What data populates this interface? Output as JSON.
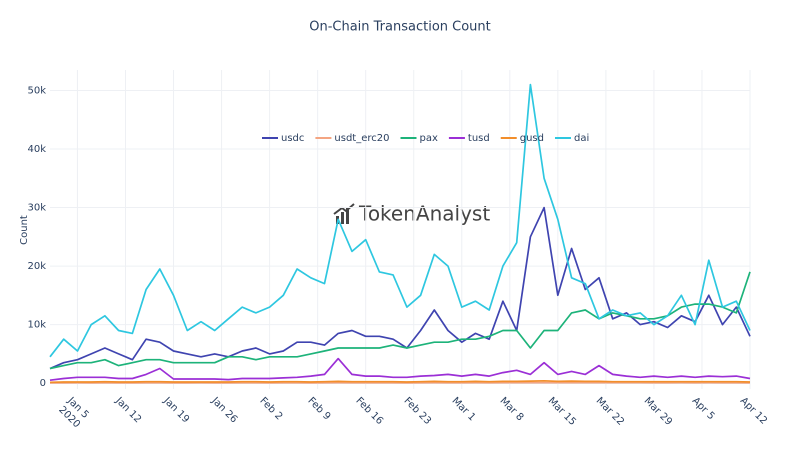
{
  "chart_data": {
    "type": "line",
    "title": "On-Chain Transaction Count",
    "ylabel": "Count",
    "watermark": "TokenAnalyst",
    "xtick_year": "2020",
    "x": [
      "2020-01-01",
      "2020-01-03",
      "2020-01-05",
      "2020-01-07",
      "2020-01-09",
      "2020-01-11",
      "2020-01-13",
      "2020-01-15",
      "2020-01-17",
      "2020-01-19",
      "2020-01-21",
      "2020-01-23",
      "2020-01-25",
      "2020-01-27",
      "2020-01-29",
      "2020-01-31",
      "2020-02-02",
      "2020-02-04",
      "2020-02-06",
      "2020-02-08",
      "2020-02-10",
      "2020-02-12",
      "2020-02-14",
      "2020-02-16",
      "2020-02-18",
      "2020-02-20",
      "2020-02-22",
      "2020-02-24",
      "2020-02-26",
      "2020-02-28",
      "2020-03-01",
      "2020-03-03",
      "2020-03-05",
      "2020-03-07",
      "2020-03-09",
      "2020-03-11",
      "2020-03-13",
      "2020-03-15",
      "2020-03-17",
      "2020-03-19",
      "2020-03-21",
      "2020-03-23",
      "2020-03-25",
      "2020-03-27",
      "2020-03-29",
      "2020-03-31",
      "2020-04-02",
      "2020-04-04",
      "2020-04-06",
      "2020-04-08",
      "2020-04-10",
      "2020-04-12"
    ],
    "series": [
      {
        "name": "usdc",
        "color": "#3f44b0",
        "values": [
          2500,
          3500,
          4000,
          5000,
          6000,
          5000,
          4000,
          7500,
          7000,
          5500,
          5000,
          4500,
          5000,
          4500,
          5500,
          6000,
          5000,
          5500,
          7000,
          7000,
          6500,
          8500,
          9000,
          8000,
          8000,
          7500,
          6000,
          9000,
          12500,
          9000,
          7000,
          8500,
          7500,
          14000,
          9000,
          25000,
          30000,
          15000,
          23000,
          16000,
          18000,
          11000,
          12000,
          10000,
          10500,
          9500,
          11500,
          10500,
          15000,
          10000,
          13000,
          8000
        ]
      },
      {
        "name": "usdt_erc20",
        "color": "#f4a582",
        "values": [
          50,
          50,
          60,
          50,
          60,
          50,
          50,
          60,
          60,
          50,
          50,
          60,
          50,
          50,
          60,
          60,
          50,
          60,
          60,
          50,
          60,
          70,
          60,
          60,
          60,
          60,
          50,
          60,
          70,
          60,
          60,
          70,
          60,
          80,
          70,
          90,
          100,
          80,
          90,
          80,
          80,
          70,
          70,
          70,
          60,
          60,
          70,
          60,
          70,
          60,
          60,
          50
        ]
      },
      {
        "name": "pax",
        "color": "#1db37a",
        "values": [
          2500,
          3000,
          3500,
          3500,
          4000,
          3000,
          3500,
          4000,
          4000,
          3500,
          3500,
          3500,
          3500,
          4500,
          4500,
          4000,
          4500,
          4500,
          4500,
          5000,
          5500,
          6000,
          6000,
          6000,
          6000,
          6500,
          6000,
          6500,
          7000,
          7000,
          7500,
          7500,
          8000,
          9000,
          9000,
          6000,
          9000,
          9000,
          12000,
          12500,
          11000,
          12000,
          11500,
          11000,
          11000,
          11500,
          13000,
          13500,
          13500,
          13000,
          12000,
          19000
        ]
      },
      {
        "name": "tusd",
        "color": "#9b2fd6",
        "values": [
          500,
          800,
          1000,
          1000,
          1000,
          800,
          800,
          1500,
          2500,
          700,
          700,
          700,
          700,
          600,
          800,
          800,
          800,
          900,
          1000,
          1200,
          1500,
          4200,
          1500,
          1200,
          1200,
          1000,
          1000,
          1200,
          1300,
          1500,
          1200,
          1500,
          1200,
          1800,
          2200,
          1500,
          3500,
          1500,
          2000,
          1500,
          3000,
          1500,
          1200,
          1000,
          1200,
          1000,
          1200,
          1000,
          1200,
          1100,
          1200,
          800
        ]
      },
      {
        "name": "gusd",
        "color": "#f28e2b",
        "values": [
          150,
          200,
          200,
          200,
          250,
          200,
          200,
          250,
          250,
          200,
          200,
          200,
          200,
          200,
          250,
          250,
          200,
          250,
          250,
          200,
          250,
          300,
          250,
          250,
          250,
          250,
          200,
          250,
          300,
          250,
          250,
          300,
          250,
          300,
          300,
          350,
          400,
          300,
          350,
          300,
          300,
          250,
          250,
          250,
          250,
          250,
          250,
          250,
          250,
          250,
          250,
          200
        ]
      },
      {
        "name": "dai",
        "color": "#2ec7e0",
        "values": [
          4500,
          7500,
          5500,
          10000,
          11500,
          9000,
          8500,
          16000,
          19500,
          15000,
          9000,
          10500,
          9000,
          11000,
          13000,
          12000,
          13000,
          15000,
          19500,
          18000,
          17000,
          28000,
          22500,
          24500,
          19000,
          18500,
          13000,
          15000,
          22000,
          20000,
          13000,
          14000,
          12500,
          20000,
          24000,
          51000,
          35000,
          28000,
          18000,
          17000,
          11000,
          12500,
          11500,
          12000,
          10000,
          11500,
          15000,
          10000,
          21000,
          13000,
          14000,
          9000
        ]
      }
    ],
    "xlim": [
      "2020-01-01",
      "2020-04-12"
    ],
    "xticks": [
      {
        "value": "2020-01-05",
        "label": "Jan 5"
      },
      {
        "value": "2020-01-12",
        "label": "Jan 12"
      },
      {
        "value": "2020-01-19",
        "label": "Jan 19"
      },
      {
        "value": "2020-01-26",
        "label": "Jan 26"
      },
      {
        "value": "2020-02-02",
        "label": "Feb 2"
      },
      {
        "value": "2020-02-09",
        "label": "Feb 9"
      },
      {
        "value": "2020-02-16",
        "label": "Feb 16"
      },
      {
        "value": "2020-02-23",
        "label": "Feb 23"
      },
      {
        "value": "2020-03-01",
        "label": "Mar 1"
      },
      {
        "value": "2020-03-08",
        "label": "Mar 8"
      },
      {
        "value": "2020-03-15",
        "label": "Mar 15"
      },
      {
        "value": "2020-03-22",
        "label": "Mar 22"
      },
      {
        "value": "2020-03-29",
        "label": "Mar 29"
      },
      {
        "value": "2020-04-05",
        "label": "Apr 5"
      },
      {
        "value": "2020-04-12",
        "label": "Apr 12"
      }
    ],
    "ylim": [
      -1000,
      53500
    ],
    "yticks": [
      0,
      {
        "value": 10000,
        "label": "10k"
      },
      {
        "value": 20000,
        "label": "20k"
      },
      {
        "value": 30000,
        "label": "30k"
      },
      {
        "value": 40000,
        "label": "40k"
      },
      {
        "value": 50000,
        "label": "50k"
      }
    ],
    "grid": true
  }
}
